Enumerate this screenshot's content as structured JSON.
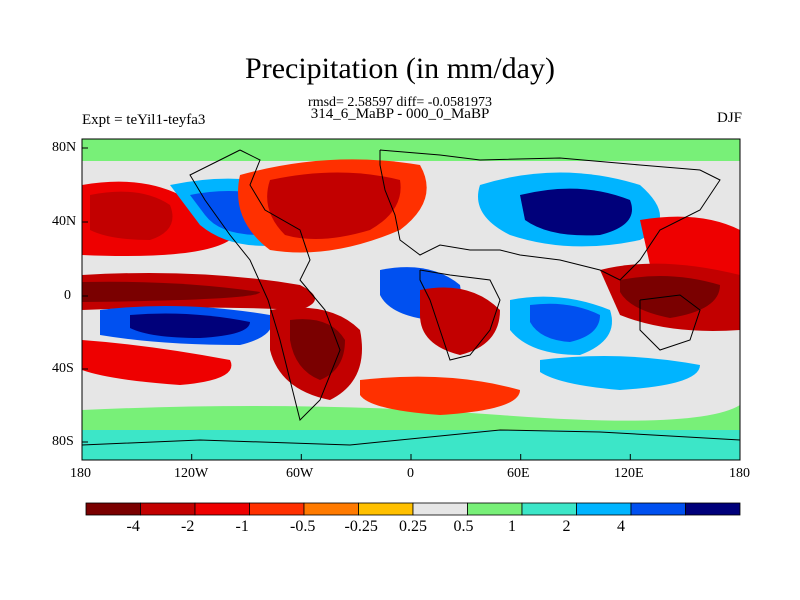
{
  "title": "Precipitation (in mm/day)",
  "rmsd_line": "rmsd= 2.58597 diff= -0.0581973",
  "subtitle": "314_6_MaBP - 000_0_MaBP",
  "experiment": "Expt = teYil1-teyfa3",
  "season": "DJF",
  "lon_ticks": [
    "180",
    "120W",
    "60W",
    "0",
    "60E",
    "120E",
    "180"
  ],
  "lat_ticks": [
    "80N",
    "40N",
    "0",
    "40S",
    "80S"
  ],
  "colorbar": {
    "colors": [
      "#7a0000",
      "#c20000",
      "#ee0000",
      "#ff3000",
      "#ff7a00",
      "#ffc000",
      "#e6e6e6",
      "#78f078",
      "#3ce6c8",
      "#00b4ff",
      "#0050f0",
      "#00007a"
    ],
    "labels": [
      "-4",
      "-2",
      "-1",
      "-0.5",
      "-0.25",
      "0.25",
      "0.5",
      "1",
      "2",
      "4"
    ]
  },
  "colors": {
    "land_outline": "#000000",
    "neutral": "#e6e6e6"
  }
}
